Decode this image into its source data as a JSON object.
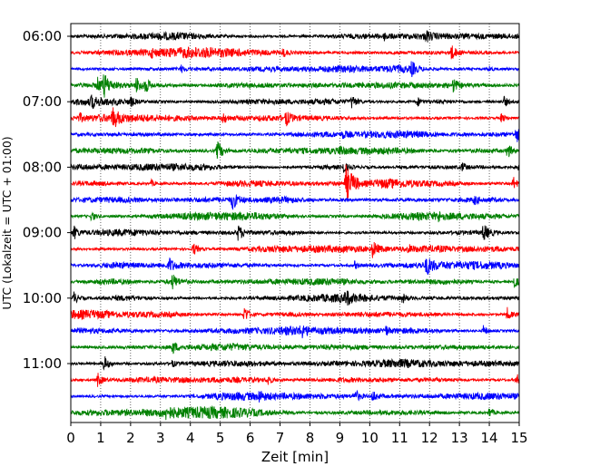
{
  "chart_data": {
    "type": "line",
    "title": "",
    "xlabel": "Zeit  [min]",
    "ylabel": "UTC (Lokalzeit = UTC + 01:00)",
    "xlim": [
      0,
      15
    ],
    "x_ticks": [
      0,
      1,
      2,
      3,
      4,
      5,
      6,
      7,
      8,
      9,
      10,
      11,
      12,
      13,
      14,
      15
    ],
    "y_tick_labels": [
      "06:00",
      "07:00",
      "08:00",
      "09:00",
      "10:00",
      "11:00"
    ],
    "grid": "vertical dotted lines at each minute",
    "trace_colors": [
      "#000000",
      "#ff0000",
      "#0000ff",
      "#008000"
    ],
    "traces": [
      {
        "start": "06:00",
        "events": [
          [
            10.5,
            0.35
          ],
          [
            11.9,
            0.4
          ]
        ]
      },
      {
        "start": "06:15",
        "events": [
          [
            2.7,
            0.3
          ],
          [
            7.1,
            0.4
          ],
          [
            12.7,
            0.8
          ]
        ]
      },
      {
        "start": "06:30",
        "events": [
          [
            3.7,
            0.3
          ],
          [
            11.4,
            0.6
          ],
          [
            14.0,
            0.3
          ]
        ]
      },
      {
        "start": "06:45",
        "events": [
          [
            0.9,
            0.6
          ],
          [
            1.1,
            1.0
          ],
          [
            2.2,
            0.7
          ],
          [
            2.5,
            0.6
          ],
          [
            12.8,
            0.6
          ]
        ]
      },
      {
        "start": "07:00",
        "events": [
          [
            0.7,
            0.5
          ],
          [
            2.0,
            0.4
          ],
          [
            9.4,
            0.6
          ],
          [
            11.6,
            0.4
          ],
          [
            14.5,
            0.5
          ]
        ]
      },
      {
        "start": "07:15",
        "events": [
          [
            0.3,
            0.35
          ],
          [
            1.4,
            0.8
          ],
          [
            5.1,
            0.5
          ],
          [
            7.2,
            0.6
          ],
          [
            14.4,
            0.4
          ]
        ]
      },
      {
        "start": "07:30",
        "events": [
          [
            9.1,
            0.3
          ],
          [
            14.9,
            0.7
          ]
        ]
      },
      {
        "start": "07:45",
        "events": [
          [
            4.9,
            0.9
          ],
          [
            9.0,
            0.4
          ],
          [
            14.6,
            0.7
          ]
        ]
      },
      {
        "start": "08:00",
        "events": [
          [
            9.1,
            0.5
          ],
          [
            13.1,
            0.4
          ],
          [
            15.0,
            0.7
          ]
        ]
      },
      {
        "start": "08:15",
        "events": [
          [
            2.7,
            0.3
          ],
          [
            9.2,
            1.6
          ],
          [
            14.8,
            0.6
          ]
        ]
      },
      {
        "start": "08:30",
        "events": [
          [
            5.4,
            0.8
          ],
          [
            13.5,
            0.3
          ]
        ]
      },
      {
        "start": "08:45",
        "events": [
          [
            0.7,
            0.5
          ],
          [
            12.3,
            0.3
          ]
        ]
      },
      {
        "start": "09:00",
        "events": [
          [
            0.1,
            0.6
          ],
          [
            5.6,
            0.7
          ],
          [
            13.8,
            0.8
          ]
        ]
      },
      {
        "start": "09:15",
        "events": [
          [
            4.1,
            0.6
          ],
          [
            10.1,
            0.7
          ],
          [
            11.3,
            0.3
          ]
        ]
      },
      {
        "start": "09:30",
        "events": [
          [
            3.3,
            0.6
          ],
          [
            9.5,
            0.35
          ],
          [
            11.9,
            0.8
          ]
        ]
      },
      {
        "start": "09:45",
        "events": [
          [
            3.4,
            0.6
          ],
          [
            14.8,
            0.7
          ]
        ]
      },
      {
        "start": "10:00",
        "events": [
          [
            0.1,
            0.6
          ],
          [
            9.2,
            0.6
          ],
          [
            11.1,
            0.4
          ]
        ]
      },
      {
        "start": "10:15",
        "events": [
          [
            5.8,
            0.8
          ],
          [
            14.6,
            0.6
          ]
        ]
      },
      {
        "start": "10:30",
        "events": [
          [
            7.7,
            0.5
          ],
          [
            10.5,
            0.5
          ],
          [
            13.8,
            0.5
          ]
        ]
      },
      {
        "start": "10:45",
        "events": [
          [
            3.4,
            0.6
          ]
        ]
      },
      {
        "start": "11:00",
        "events": [
          [
            1.1,
            0.8
          ],
          [
            3.4,
            0.3
          ]
        ]
      },
      {
        "start": "11:15",
        "events": [
          [
            0.9,
            0.6
          ],
          [
            6.6,
            0.4
          ],
          [
            14.9,
            0.6
          ]
        ]
      },
      {
        "start": "11:30",
        "events": [
          [
            6.3,
            0.4
          ],
          [
            9.5,
            0.6
          ],
          [
            10.1,
            0.5
          ]
        ]
      },
      {
        "start": "11:45",
        "events": [
          [
            3.2,
            0.5
          ],
          [
            14.0,
            0.5
          ]
        ]
      }
    ]
  }
}
